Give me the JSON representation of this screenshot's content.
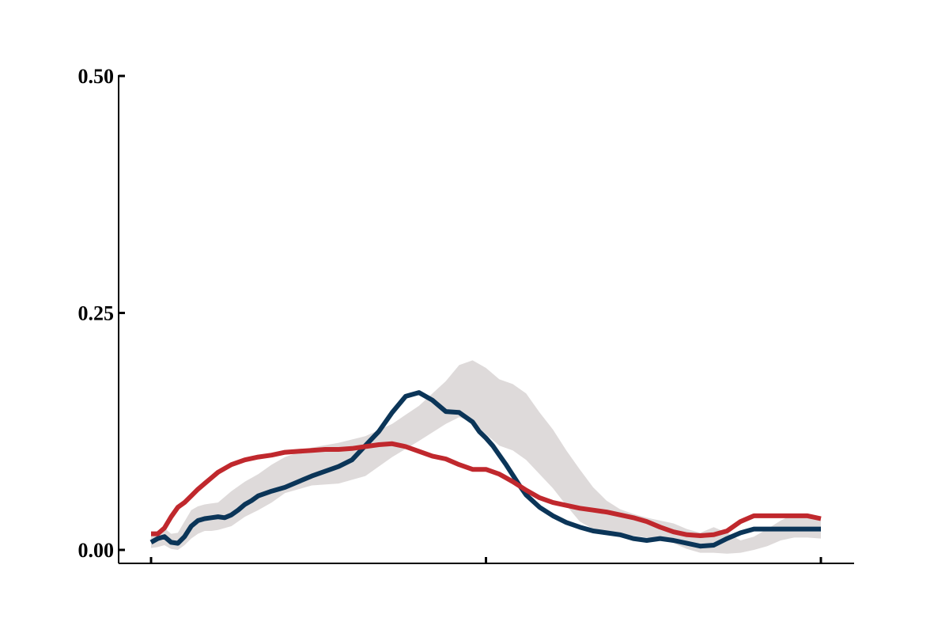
{
  "chart_data": {
    "type": "line",
    "title": "",
    "xlabel": "",
    "ylabel": "",
    "xlim": [
      0,
      100
    ],
    "ylim": [
      0,
      0.5
    ],
    "xticks": [
      0,
      50,
      100
    ],
    "xtick_labels": [
      "",
      "",
      ""
    ],
    "yticks": [
      0,
      0.25,
      0.5
    ],
    "ytick_labels": [
      "0.00",
      "0.25",
      "0.50"
    ],
    "grid": false,
    "legend": "none",
    "band": {
      "color": "#d8d3d3",
      "x": [
        0,
        1,
        2,
        3,
        4,
        5,
        6,
        7,
        8,
        9,
        10,
        12,
        14,
        16,
        18,
        20,
        24,
        28,
        32,
        36,
        40,
        44,
        46,
        48,
        50,
        52,
        54,
        56,
        58,
        60,
        62,
        64,
        66,
        68,
        70,
        72,
        74,
        76,
        78,
        80,
        82,
        84,
        86,
        88,
        90,
        92,
        94,
        96,
        98,
        100
      ],
      "upper": [
        0.016,
        0.02,
        0.023,
        0.017,
        0.018,
        0.03,
        0.042,
        0.046,
        0.048,
        0.049,
        0.05,
        0.062,
        0.072,
        0.08,
        0.09,
        0.098,
        0.108,
        0.113,
        0.12,
        0.133,
        0.152,
        0.178,
        0.195,
        0.2,
        0.192,
        0.18,
        0.175,
        0.165,
        0.145,
        0.127,
        0.105,
        0.085,
        0.066,
        0.052,
        0.043,
        0.038,
        0.034,
        0.031,
        0.028,
        0.022,
        0.018,
        0.024,
        0.018,
        0.01,
        0.014,
        0.022,
        0.031,
        0.038,
        0.038,
        0.034
      ],
      "lower": [
        0.002,
        0.003,
        0.005,
        0.001,
        0.0,
        0.005,
        0.012,
        0.017,
        0.02,
        0.02,
        0.021,
        0.025,
        0.035,
        0.042,
        0.05,
        0.06,
        0.068,
        0.07,
        0.078,
        0.098,
        0.115,
        0.133,
        0.14,
        0.135,
        0.122,
        0.11,
        0.105,
        0.095,
        0.08,
        0.065,
        0.047,
        0.03,
        0.022,
        0.018,
        0.016,
        0.015,
        0.013,
        0.012,
        0.007,
        0.001,
        -0.003,
        -0.003,
        -0.004,
        -0.003,
        0.0,
        0.004,
        0.01,
        0.013,
        0.013,
        0.012
      ]
    },
    "series": [
      {
        "color": "#0b3558",
        "x": [
          0,
          1,
          2,
          3,
          4,
          5,
          6,
          7,
          8,
          9,
          10,
          11,
          12,
          13,
          14,
          15,
          16,
          18,
          20,
          22,
          24,
          26,
          28,
          30,
          32,
          34,
          36,
          38,
          40,
          42,
          44,
          46,
          47,
          48,
          49,
          50,
          51,
          52,
          53,
          54,
          55,
          56,
          58,
          60,
          62,
          64,
          66,
          68,
          70,
          72,
          74,
          76,
          78,
          80,
          82,
          84,
          86,
          88,
          90,
          92,
          94,
          96,
          98,
          100
        ],
        "y": [
          0.008,
          0.012,
          0.014,
          0.008,
          0.007,
          0.014,
          0.025,
          0.031,
          0.033,
          0.034,
          0.035,
          0.034,
          0.037,
          0.042,
          0.048,
          0.052,
          0.057,
          0.062,
          0.066,
          0.072,
          0.078,
          0.083,
          0.088,
          0.095,
          0.11,
          0.125,
          0.145,
          0.162,
          0.166,
          0.158,
          0.146,
          0.145,
          0.14,
          0.135,
          0.125,
          0.118,
          0.11,
          0.1,
          0.09,
          0.079,
          0.068,
          0.058,
          0.045,
          0.036,
          0.029,
          0.024,
          0.02,
          0.018,
          0.016,
          0.012,
          0.01,
          0.012,
          0.01,
          0.007,
          0.004,
          0.005,
          0.012,
          0.018,
          0.022,
          0.022,
          0.022,
          0.022,
          0.022,
          0.022
        ]
      },
      {
        "color": "#c0282d",
        "x": [
          0,
          1,
          2,
          3,
          4,
          5,
          6,
          7,
          8,
          9,
          10,
          12,
          14,
          16,
          18,
          20,
          22,
          24,
          26,
          28,
          30,
          32,
          34,
          36,
          38,
          40,
          42,
          44,
          46,
          48,
          50,
          52,
          54,
          56,
          58,
          60,
          62,
          64,
          66,
          68,
          70,
          72,
          74,
          76,
          78,
          80,
          82,
          84,
          86,
          88,
          90,
          92,
          94,
          96,
          98,
          100
        ],
        "y": [
          0.017,
          0.017,
          0.023,
          0.035,
          0.045,
          0.05,
          0.057,
          0.064,
          0.07,
          0.076,
          0.082,
          0.09,
          0.095,
          0.098,
          0.1,
          0.103,
          0.104,
          0.105,
          0.106,
          0.106,
          0.107,
          0.109,
          0.111,
          0.112,
          0.109,
          0.104,
          0.099,
          0.096,
          0.09,
          0.085,
          0.085,
          0.08,
          0.072,
          0.063,
          0.055,
          0.05,
          0.047,
          0.044,
          0.042,
          0.04,
          0.037,
          0.034,
          0.03,
          0.024,
          0.019,
          0.016,
          0.015,
          0.016,
          0.02,
          0.03,
          0.036,
          0.036,
          0.036,
          0.036,
          0.036,
          0.033
        ]
      }
    ]
  }
}
